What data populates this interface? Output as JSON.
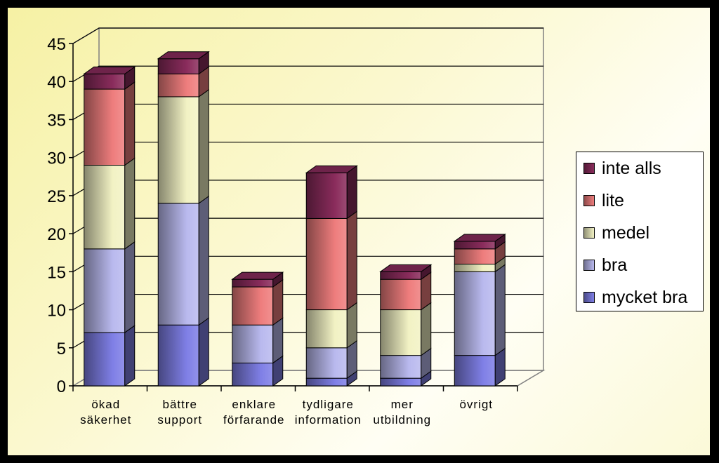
{
  "chart_data": {
    "type": "bar",
    "stacked": true,
    "three_d": true,
    "categories": [
      [
        "ökad",
        "säkerhet"
      ],
      [
        "bättre",
        "support"
      ],
      [
        "enklare",
        "förfarande"
      ],
      [
        "tydligare",
        "information"
      ],
      [
        "mer",
        "utbildning"
      ],
      [
        "övrigt"
      ]
    ],
    "series": [
      {
        "name": "mycket bra",
        "color": "#7f7fe6",
        "values": [
          7,
          8,
          3,
          1,
          1,
          4
        ]
      },
      {
        "name": "bra",
        "color": "#b9b9ee",
        "values": [
          11,
          16,
          5,
          4,
          3,
          11
        ]
      },
      {
        "name": "medel",
        "color": "#f2f2c4",
        "values": [
          11,
          14,
          0,
          5,
          6,
          1
        ]
      },
      {
        "name": "lite",
        "color": "#ee7d7d",
        "values": [
          10,
          3,
          5,
          12,
          4,
          2
        ]
      },
      {
        "name": "inte alls",
        "color": "#8a2c5c",
        "values": [
          2,
          2,
          1,
          6,
          1,
          1
        ]
      }
    ],
    "ylim": [
      0,
      45
    ],
    "yticks": [
      "0",
      "5",
      "10",
      "15",
      "20",
      "25",
      "30",
      "35",
      "40",
      "45"
    ],
    "grid": true,
    "legend_position": "right"
  }
}
